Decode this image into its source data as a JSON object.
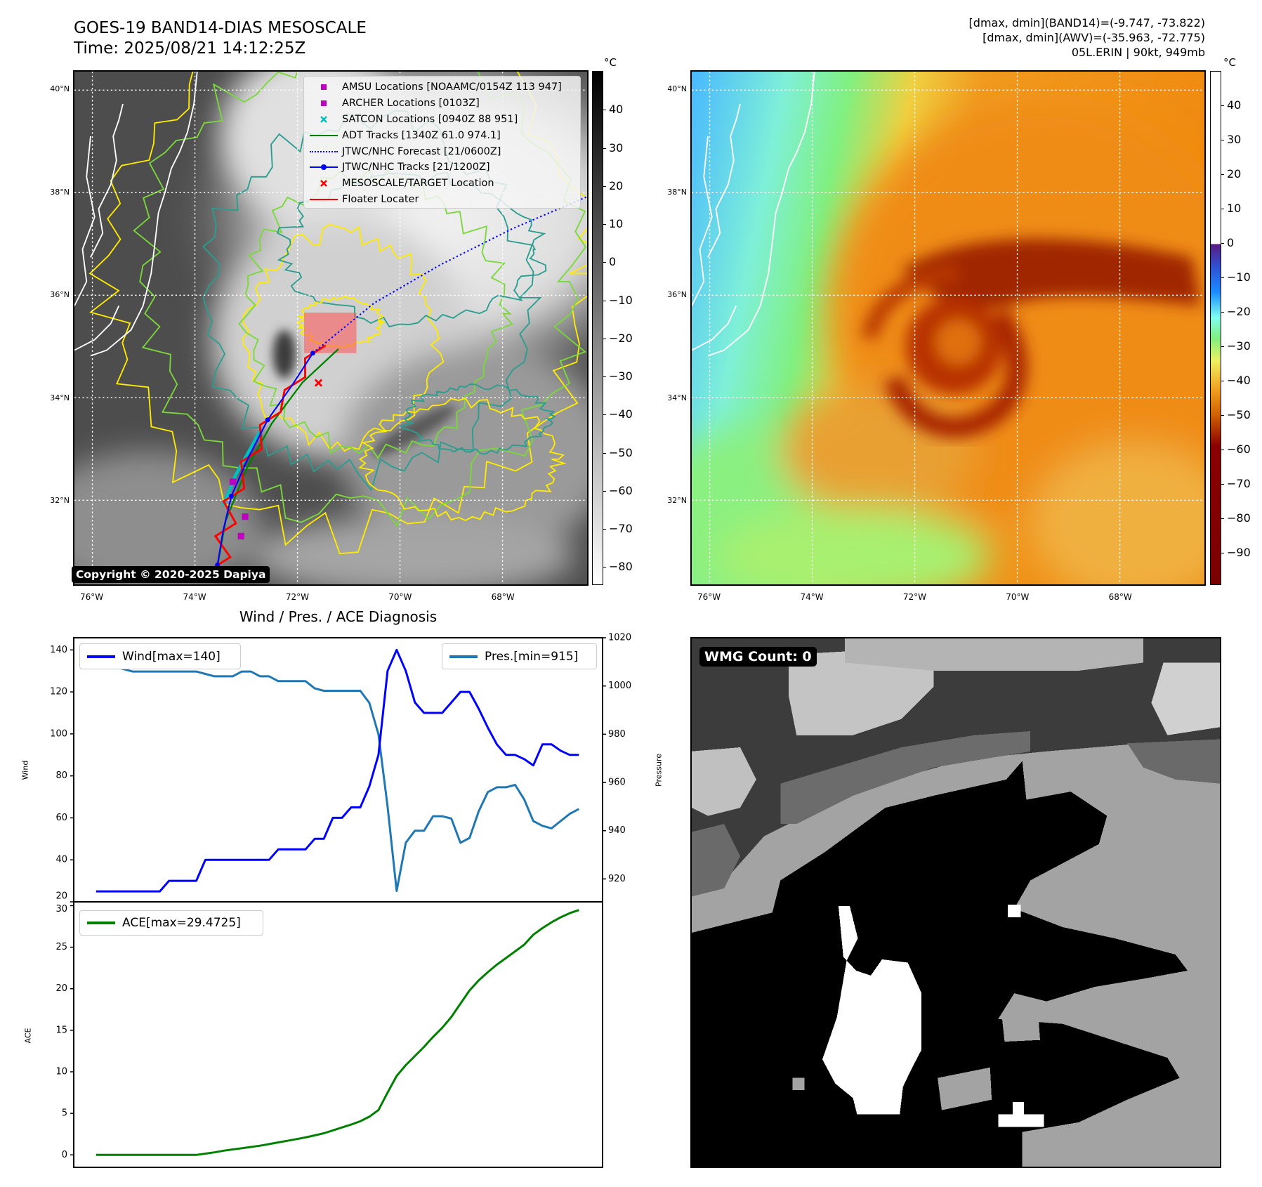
{
  "header": {
    "title_line1": "GOES-19 BAND14-DIAS MESOSCALE",
    "title_line2": "Time: 2025/08/21 14:12:25Z",
    "info_line1": "[dmax, dmin](BAND14)=(-9.747, -73.822)",
    "info_line2": "[dmax, dmin](AWV)=(-35.963, -72.775)",
    "info_line3": "05L.ERIN | 90kt, 949mb"
  },
  "maps": {
    "extent": {
      "lon": [
        -76.35,
        -66.35
      ],
      "lat": [
        30.36,
        40.36
      ]
    },
    "lat_ticks": [
      {
        "value": 40,
        "label": "40°N"
      },
      {
        "value": 38,
        "label": "38°N"
      },
      {
        "value": 36,
        "label": "36°N"
      },
      {
        "value": 34,
        "label": "34°N"
      },
      {
        "value": 32,
        "label": "32°N"
      }
    ],
    "lon_ticks": [
      {
        "value": -76,
        "label": "76°W"
      },
      {
        "value": -74,
        "label": "74°W"
      },
      {
        "value": -72,
        "label": "72°W"
      },
      {
        "value": -70,
        "label": "70°W"
      },
      {
        "value": -68,
        "label": "68°W"
      }
    ],
    "copyright": "Copyright © 2020-2025 Dapiya",
    "colorbar_left": {
      "unit": "°C",
      "range": [
        -84.7,
        50.2
      ],
      "ticks": [
        "40",
        "30",
        "20",
        "10",
        "0",
        "−10",
        "−20",
        "−30",
        "−40",
        "−50",
        "−60",
        "−70",
        "−80"
      ],
      "tick_values": [
        40,
        30,
        20,
        10,
        0,
        -10,
        -20,
        -30,
        -40,
        -50,
        -60,
        -70,
        -80
      ]
    },
    "colorbar_right": {
      "unit": "°C",
      "range": [
        -99.4,
        50.1
      ],
      "ticks": [
        "40",
        "30",
        "20",
        "10",
        "0",
        "−10",
        "−20",
        "−30",
        "−40",
        "−50",
        "−60",
        "−70",
        "−80",
        "−90"
      ],
      "tick_values": [
        40,
        30,
        20,
        10,
        0,
        -10,
        -20,
        -30,
        -40,
        -50,
        -60,
        -70,
        -80,
        -90
      ]
    },
    "legend": [
      {
        "label": "AMSU Locations [NOAAMC/0154Z 113 947]",
        "marker": "square",
        "color": "#c000c0"
      },
      {
        "label": "ARCHER Locations [0103Z]",
        "marker": "square",
        "color": "#c000c0"
      },
      {
        "label": "SATCON Locations [0940Z 88 951]",
        "marker": "x",
        "color": "#00c0c0"
      },
      {
        "label": "ADT Tracks [1340Z 61.0 974.1]",
        "marker": "line",
        "color": "#008000"
      },
      {
        "label": "JTWC/NHC Forecast [21/0600Z]",
        "marker": "dotted",
        "color": "#0000ff"
      },
      {
        "label": "JTWC/NHC Tracks [21/1200Z]",
        "marker": "line-dot",
        "color": "#0000ff"
      },
      {
        "label": "MESOSCALE/TARGET Location",
        "marker": "x",
        "color": "#ff0000"
      },
      {
        "label": "Floater Locater",
        "marker": "line",
        "color": "#ff0000"
      }
    ],
    "tracks": {
      "jtwc_track": [
        [
          -73.56,
          30.74
        ],
        [
          -73.45,
          31.4
        ],
        [
          -73.29,
          32.08
        ],
        [
          -72.95,
          32.85
        ],
        [
          -72.58,
          33.57
        ],
        [
          -72.1,
          34.25
        ],
        [
          -71.7,
          34.87
        ]
      ],
      "jtwc_forecast": [
        [
          -71.7,
          34.87
        ],
        [
          -70.5,
          35.85
        ],
        [
          -69.2,
          36.6
        ],
        [
          -67.8,
          37.3
        ],
        [
          -66.35,
          37.92
        ]
      ],
      "adt_track": [
        [
          -73.6,
          30.5
        ],
        [
          -73.4,
          31.6
        ],
        [
          -73.0,
          32.6
        ],
        [
          -72.5,
          33.5
        ],
        [
          -71.9,
          34.3
        ],
        [
          -71.2,
          34.95
        ]
      ],
      "satcon": [
        [
          -73.45,
          31.9
        ],
        [
          -73.2,
          32.5
        ],
        [
          -72.7,
          33.4
        ]
      ],
      "amsu": [
        [
          -73.02,
          31.68
        ],
        [
          -73.1,
          31.3
        ]
      ],
      "archer": [
        [
          -73.26,
          32.36
        ]
      ],
      "target": [
        -71.59,
        34.29
      ],
      "floater_box": [
        [
          -71.87,
          35.66
        ],
        [
          -70.85,
          34.87
        ]
      ]
    }
  },
  "chart_data": [
    {
      "type": "line",
      "title": "Wind / Pres. / ACE Diagnosis",
      "xlim": [
        -2.45,
        55.6
      ],
      "ylabel": "Wind",
      "ylabel_right": "Pressure",
      "ylim": [
        20,
        145.8
      ],
      "ylim_right": [
        910.5,
        1020
      ],
      "yticks": [
        20,
        40,
        60,
        80,
        100,
        120,
        140
      ],
      "yticks_right": [
        920,
        940,
        960,
        980,
        1000,
        1020
      ],
      "series": [
        {
          "name": "Wind[max=140]",
          "axis": "left",
          "color": "#0000ff",
          "values": [
            25,
            25,
            25,
            25,
            25,
            25,
            25,
            25,
            30,
            30,
            30,
            30,
            40,
            40,
            40,
            40,
            40,
            40,
            40,
            40,
            45,
            45,
            45,
            45,
            50,
            50,
            60,
            60,
            65,
            65,
            75,
            90,
            130,
            140,
            130,
            115,
            110,
            110,
            110,
            115,
            120,
            120,
            112,
            103,
            95,
            90,
            90,
            88,
            85,
            95,
            95,
            92,
            90,
            90
          ]
        },
        {
          "name": "Pres.[min=915]",
          "axis": "right",
          "color": "#1f77b4",
          "values": [
            1015,
            1015,
            1008,
            1007,
            1006,
            1006,
            1006,
            1006,
            1006,
            1006,
            1006,
            1006,
            1005,
            1004,
            1004,
            1004,
            1006,
            1006,
            1004,
            1004,
            1002,
            1002,
            1002,
            1002,
            999,
            998,
            998,
            998,
            998,
            998,
            993,
            980,
            950,
            915,
            935,
            940,
            940,
            946,
            946,
            945,
            935,
            937,
            948,
            956,
            958,
            958,
            959,
            953,
            944,
            942,
            941,
            944,
            947,
            949
          ]
        }
      ]
    },
    {
      "type": "line",
      "xlim": [
        -2.45,
        55.6
      ],
      "ylabel": "ACE",
      "ylim": [
        -1.5,
        30.46
      ],
      "yticks": [
        0,
        5,
        10,
        15,
        20,
        25,
        30
      ],
      "series": [
        {
          "name": "ACE[max=29.4725]",
          "color": "#008000",
          "values": [
            0,
            0,
            0,
            0,
            0,
            0,
            0,
            0,
            0,
            0,
            0,
            0,
            0.15,
            0.3,
            0.5,
            0.66,
            0.8,
            0.95,
            1.1,
            1.3,
            1.5,
            1.7,
            1.9,
            2.1,
            2.35,
            2.6,
            2.95,
            3.3,
            3.65,
            4.05,
            4.6,
            5.4,
            7.5,
            9.5,
            10.8,
            11.9,
            13.0,
            14.2,
            15.3,
            16.6,
            18.2,
            19.8,
            21.0,
            22.0,
            22.9,
            23.7,
            24.5,
            25.3,
            26.5,
            27.3,
            28.0,
            28.6,
            29.1,
            29.47
          ]
        }
      ]
    }
  ],
  "wmg": {
    "label": "WMG Count: 0"
  }
}
